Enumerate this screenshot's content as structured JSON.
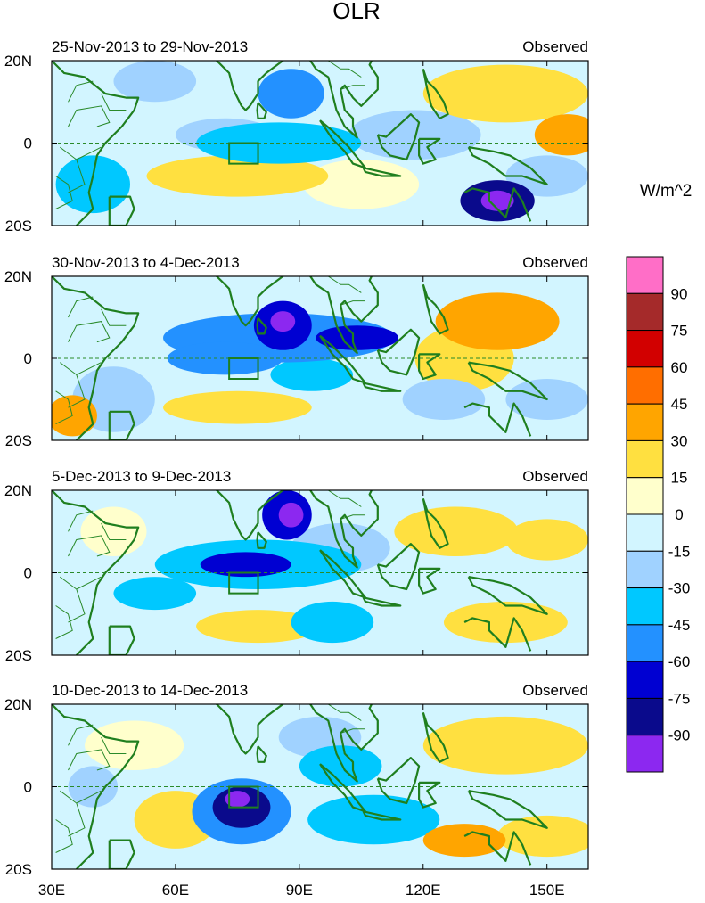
{
  "chart_data": {
    "type": "heatmap",
    "title": "OLR",
    "units": "W/m^2",
    "x_ticks": [
      "30E",
      "60E",
      "90E",
      "120E",
      "150E"
    ],
    "x_range_deg": [
      30,
      160
    ],
    "y_ticks": [
      "20N",
      "0",
      "20S"
    ],
    "y_range_deg": [
      -20,
      20
    ],
    "colorbar": {
      "labels": [
        "90",
        "75",
        "60",
        "45",
        "30",
        "15",
        "0",
        "-15",
        "-30",
        "-45",
        "-60",
        "-75",
        "-90"
      ],
      "levels": [
        90,
        75,
        60,
        45,
        30,
        15,
        0,
        -15,
        -30,
        -45,
        -60,
        -75,
        -90
      ],
      "colors": [
        "#ff6ec7",
        "#a52a2a",
        "#d20000",
        "#ff6e00",
        "#ffa500",
        "#ffe040",
        "#ffffcc",
        "#d2f5ff",
        "#a0d2ff",
        "#00c8ff",
        "#2391ff",
        "#0000d2",
        "#0a0a8c",
        "#8c28f0"
      ]
    },
    "box_region": {
      "lon": [
        73,
        80
      ],
      "lat": [
        -5,
        0
      ]
    },
    "panels": [
      {
        "label": "25-Nov-2013 to 29-Nov-2013",
        "tag": "Observed",
        "blobs": [
          {
            "lon": 88,
            "lat": 12,
            "rx": 8,
            "ry": 6,
            "v": -55
          },
          {
            "lon": 85,
            "lat": 0,
            "rx": 20,
            "ry": 5,
            "v": -35
          },
          {
            "lon": 72,
            "lat": 2,
            "rx": 12,
            "ry": 4,
            "v": -25
          },
          {
            "lon": 40,
            "lat": -10,
            "rx": 9,
            "ry": 7,
            "v": -30
          },
          {
            "lon": 138,
            "lat": -14,
            "rx": 9,
            "ry": 5,
            "v": -75
          },
          {
            "lon": 138,
            "lat": -14,
            "rx": 4,
            "ry": 2.5,
            "v": -95
          },
          {
            "lon": 150,
            "lat": -8,
            "rx": 10,
            "ry": 5,
            "v": -25
          },
          {
            "lon": 118,
            "lat": 2,
            "rx": 16,
            "ry": 6,
            "v": -20
          },
          {
            "lon": 75,
            "lat": -8,
            "rx": 22,
            "ry": 5,
            "v": 20
          },
          {
            "lon": 105,
            "lat": -10,
            "rx": 14,
            "ry": 6,
            "v": 15
          },
          {
            "lon": 140,
            "lat": 12,
            "rx": 20,
            "ry": 7,
            "v": 22
          },
          {
            "lon": 155,
            "lat": 2,
            "rx": 8,
            "ry": 5,
            "v": 35
          },
          {
            "lon": 128,
            "lat": 8,
            "rx": 6,
            "ry": 4,
            "v": 10
          },
          {
            "lon": 55,
            "lat": 15,
            "rx": 10,
            "ry": 5,
            "v": -18
          }
        ]
      },
      {
        "label": "30-Nov-2013 to 4-Dec-2013",
        "tag": "Observed",
        "blobs": [
          {
            "lon": 85,
            "lat": 5,
            "rx": 28,
            "ry": 6,
            "v": -45
          },
          {
            "lon": 86,
            "lat": 8,
            "rx": 7,
            "ry": 6,
            "v": -70
          },
          {
            "lon": 86,
            "lat": 9,
            "rx": 3,
            "ry": 2.5,
            "v": -95
          },
          {
            "lon": 104,
            "lat": 5,
            "rx": 10,
            "ry": 3,
            "v": -65
          },
          {
            "lon": 72,
            "lat": 0,
            "rx": 14,
            "ry": 4,
            "v": -45
          },
          {
            "lon": 93,
            "lat": -4,
            "rx": 10,
            "ry": 4,
            "v": -35
          },
          {
            "lon": 45,
            "lat": -10,
            "rx": 10,
            "ry": 8,
            "v": -20
          },
          {
            "lon": 138,
            "lat": 9,
            "rx": 15,
            "ry": 7,
            "v": 35
          },
          {
            "lon": 130,
            "lat": 0,
            "rx": 12,
            "ry": 8,
            "v": 20
          },
          {
            "lon": 75,
            "lat": -12,
            "rx": 18,
            "ry": 4,
            "v": 18
          },
          {
            "lon": 35,
            "lat": -14,
            "rx": 6,
            "ry": 5,
            "v": 35
          },
          {
            "lon": 150,
            "lat": -10,
            "rx": 10,
            "ry": 5,
            "v": -25
          },
          {
            "lon": 125,
            "lat": -10,
            "rx": 10,
            "ry": 5,
            "v": -20
          }
        ]
      },
      {
        "label": "5-Dec-2013 to 9-Dec-2013",
        "tag": "Observed",
        "blobs": [
          {
            "lon": 87,
            "lat": 14,
            "rx": 6,
            "ry": 6,
            "v": -70
          },
          {
            "lon": 88,
            "lat": 14,
            "rx": 3,
            "ry": 3,
            "v": -95
          },
          {
            "lon": 77,
            "lat": 2,
            "rx": 11,
            "ry": 3,
            "v": -72
          },
          {
            "lon": 80,
            "lat": 2,
            "rx": 25,
            "ry": 6,
            "v": -40
          },
          {
            "lon": 100,
            "lat": 6,
            "rx": 12,
            "ry": 6,
            "v": -25
          },
          {
            "lon": 98,
            "lat": -12,
            "rx": 10,
            "ry": 5,
            "v": -30
          },
          {
            "lon": 55,
            "lat": -5,
            "rx": 10,
            "ry": 4,
            "v": -30
          },
          {
            "lon": 128,
            "lat": 10,
            "rx": 15,
            "ry": 6,
            "v": 18
          },
          {
            "lon": 80,
            "lat": -13,
            "rx": 15,
            "ry": 4,
            "v": 20
          },
          {
            "lon": 150,
            "lat": 8,
            "rx": 10,
            "ry": 5,
            "v": 18
          },
          {
            "lon": 140,
            "lat": -12,
            "rx": 15,
            "ry": 5,
            "v": 18
          },
          {
            "lon": 45,
            "lat": 10,
            "rx": 8,
            "ry": 6,
            "v": 10
          }
        ]
      },
      {
        "label": "10-Dec-2013 to 14-Dec-2013",
        "tag": "Observed",
        "blobs": [
          {
            "lon": 76,
            "lat": -6,
            "rx": 12,
            "ry": 8,
            "v": -50
          },
          {
            "lon": 76,
            "lat": -5,
            "rx": 7,
            "ry": 5,
            "v": -75
          },
          {
            "lon": 75,
            "lat": -3,
            "rx": 3,
            "ry": 2,
            "v": -95
          },
          {
            "lon": 108,
            "lat": -8,
            "rx": 16,
            "ry": 6,
            "v": -35
          },
          {
            "lon": 100,
            "lat": 5,
            "rx": 10,
            "ry": 5,
            "v": -30
          },
          {
            "lon": 40,
            "lat": 0,
            "rx": 6,
            "ry": 5,
            "v": -25
          },
          {
            "lon": 140,
            "lat": 10,
            "rx": 20,
            "ry": 7,
            "v": 28
          },
          {
            "lon": 130,
            "lat": -13,
            "rx": 10,
            "ry": 4,
            "v": 35
          },
          {
            "lon": 60,
            "lat": -8,
            "rx": 10,
            "ry": 7,
            "v": 18
          },
          {
            "lon": 50,
            "lat": 10,
            "rx": 12,
            "ry": 6,
            "v": 15
          },
          {
            "lon": 150,
            "lat": -12,
            "rx": 12,
            "ry": 5,
            "v": 20
          },
          {
            "lon": 95,
            "lat": 12,
            "rx": 10,
            "ry": 5,
            "v": -20
          }
        ]
      }
    ]
  }
}
